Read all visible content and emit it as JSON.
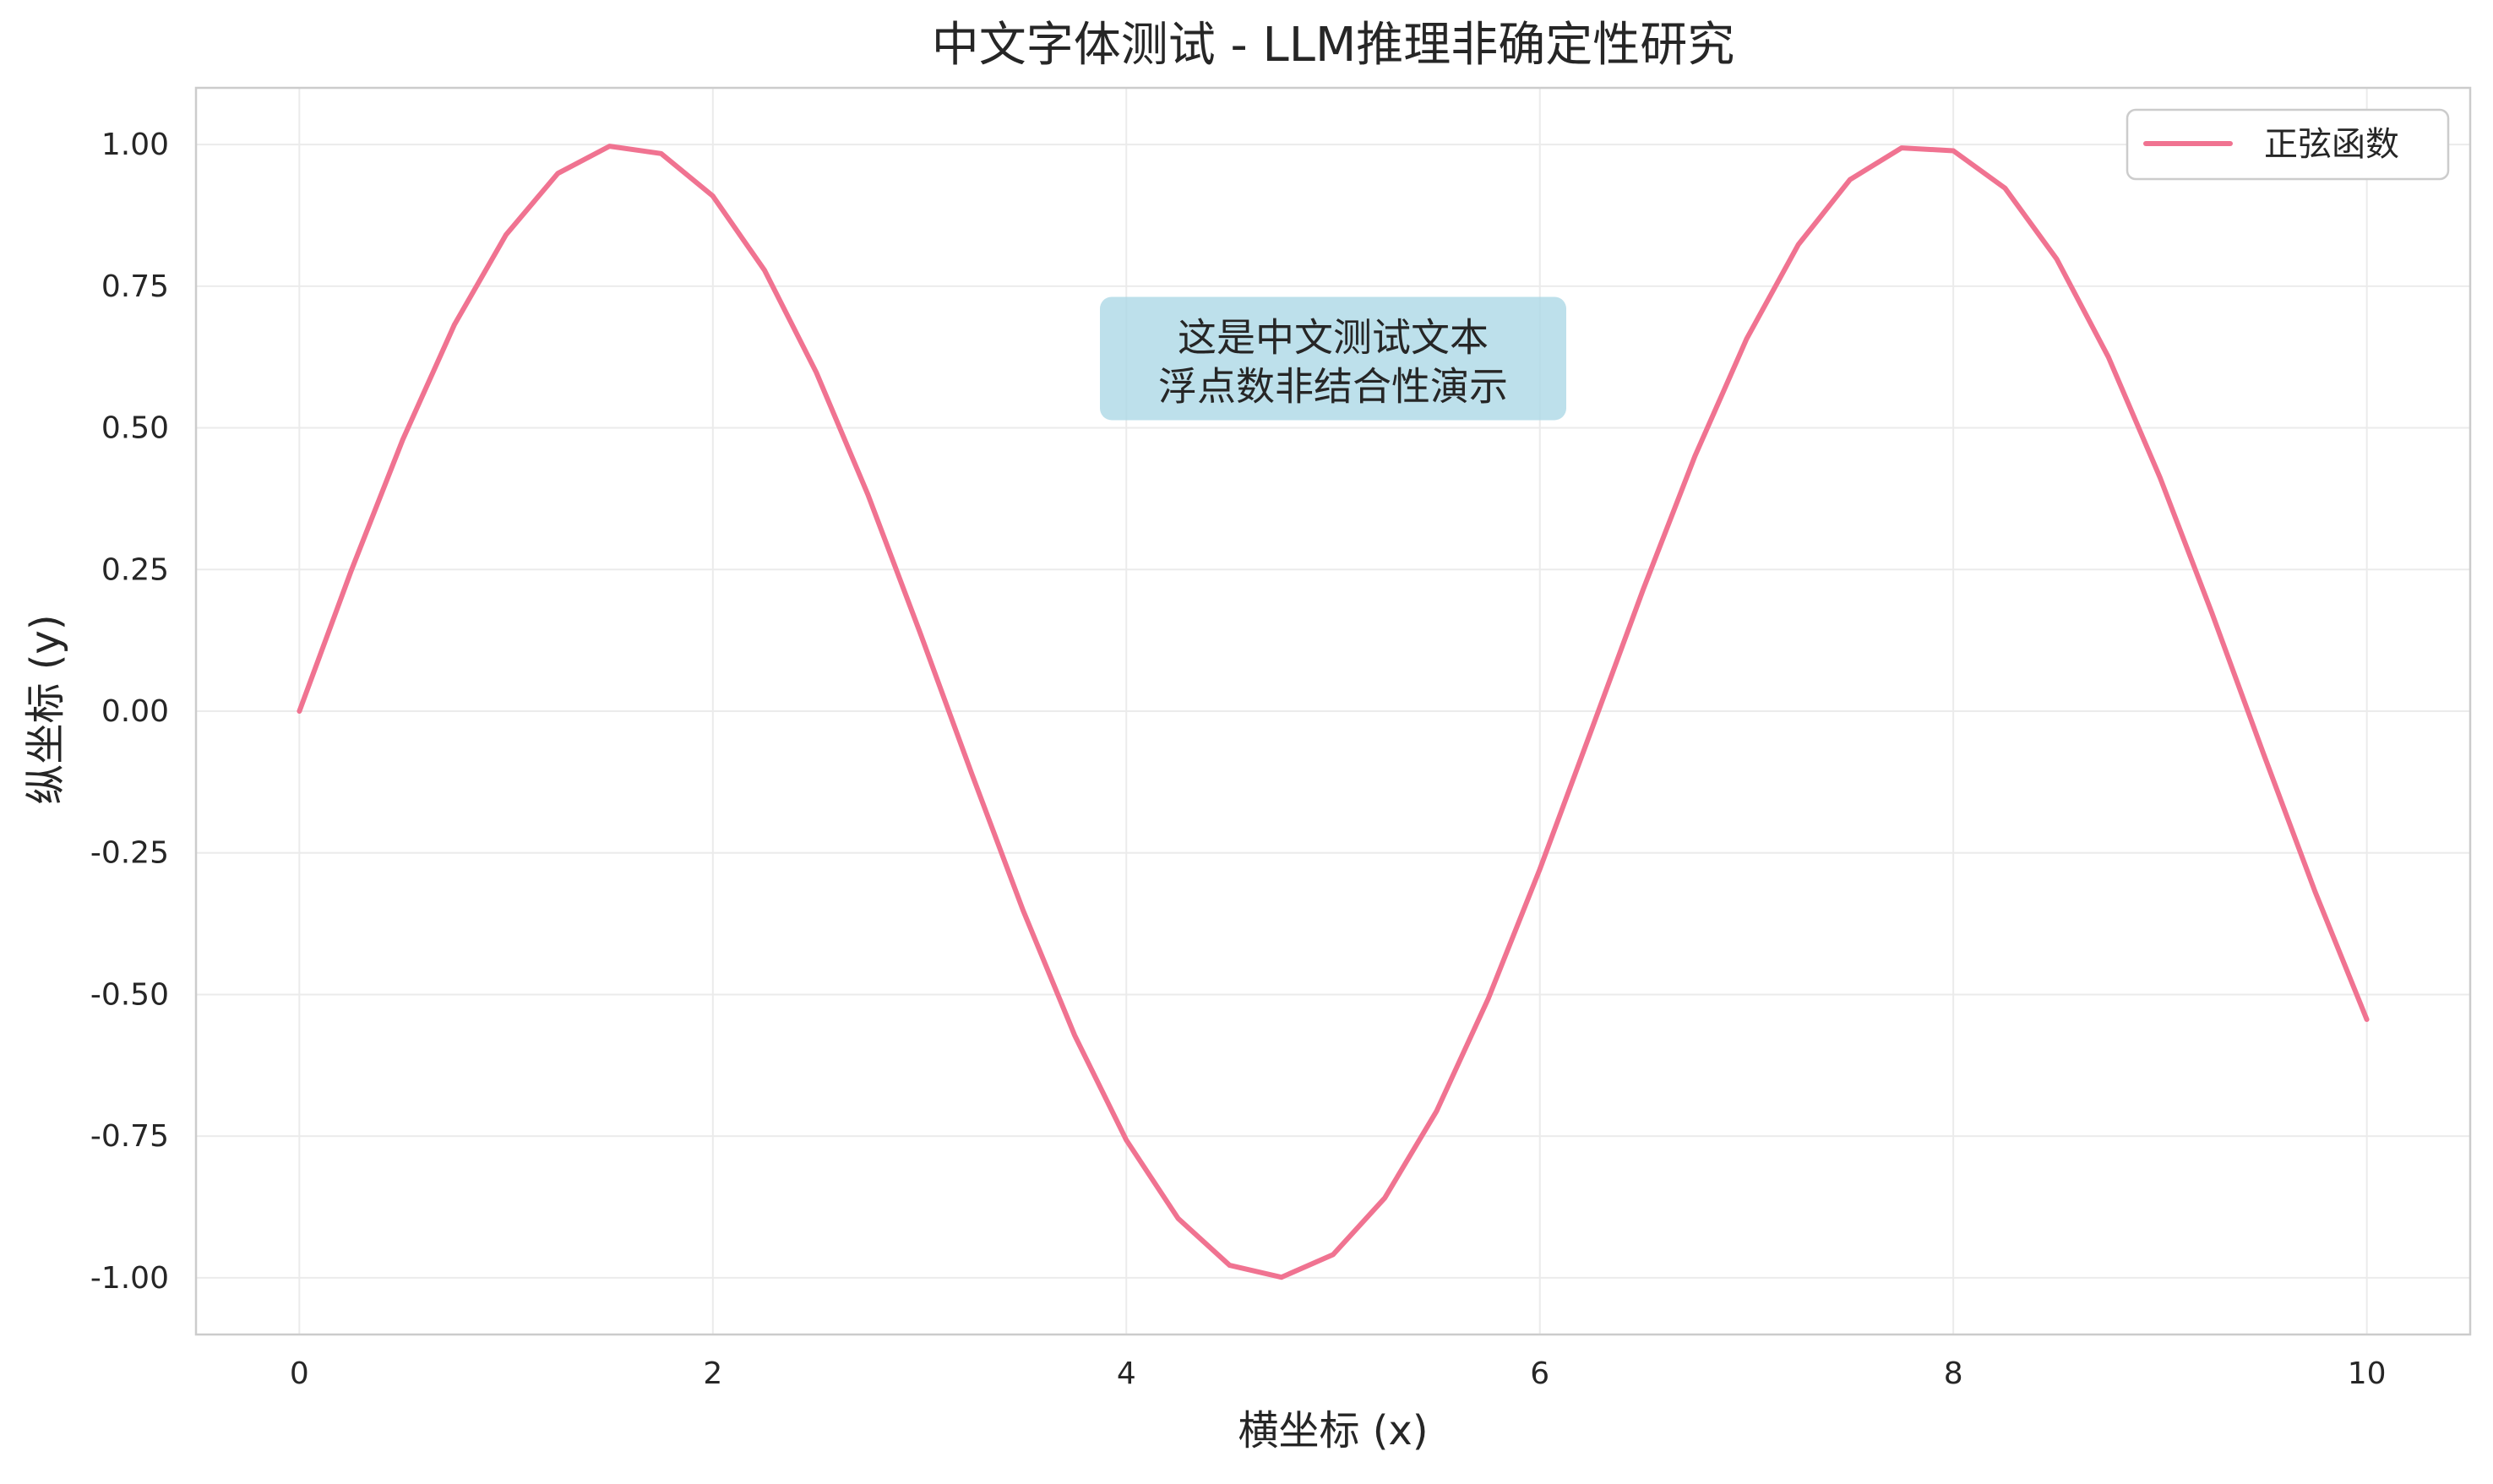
{
  "chart_data": {
    "type": "line",
    "title": "中文字体测试 - LLM推理非确定性研究",
    "xlabel": "横坐标 (x)",
    "ylabel": "纵坐标 (y)",
    "xlim": [
      -0.5,
      10.5
    ],
    "ylim": [
      -1.1,
      1.1
    ],
    "xticks": [
      0,
      2,
      4,
      6,
      8,
      10
    ],
    "xtick_labels": [
      "0",
      "2",
      "4",
      "6",
      "8",
      "10"
    ],
    "yticks": [
      -1.0,
      -0.75,
      -0.5,
      -0.25,
      0.0,
      0.25,
      0.5,
      0.75,
      1.0
    ],
    "ytick_labels": [
      "-1.00",
      "-0.75",
      "-0.50",
      "-0.25",
      "0.00",
      "0.25",
      "0.50",
      "0.75",
      "1.00"
    ],
    "grid": true,
    "legend_position": "top-right",
    "series": [
      {
        "name": "正弦函数",
        "color": "#f07391",
        "x": [
          0.0,
          0.25,
          0.5,
          0.75,
          1.0,
          1.25,
          1.5,
          1.75,
          2.0,
          2.25,
          2.5,
          2.75,
          3.0,
          3.25,
          3.5,
          3.75,
          4.0,
          4.25,
          4.5,
          4.75,
          5.0,
          5.25,
          5.5,
          5.75,
          6.0,
          6.25,
          6.5,
          6.75,
          7.0,
          7.25,
          7.5,
          7.75,
          8.0,
          8.25,
          8.5,
          8.75,
          9.0,
          9.25,
          9.5,
          9.75,
          10.0
        ],
        "y": [
          0.0,
          0.247,
          0.479,
          0.682,
          0.841,
          0.949,
          0.997,
          0.984,
          0.909,
          0.778,
          0.598,
          0.382,
          0.141,
          -0.108,
          -0.351,
          -0.572,
          -0.757,
          -0.895,
          -0.978,
          -0.999,
          -0.959,
          -0.859,
          -0.706,
          -0.508,
          -0.279,
          -0.033,
          0.215,
          0.45,
          0.657,
          0.823,
          0.938,
          0.994,
          0.989,
          0.923,
          0.798,
          0.625,
          0.412,
          0.174,
          -0.075,
          -0.319,
          -0.544
        ]
      }
    ],
    "annotation": {
      "lines": [
        "这是中文测试文本",
        "浮点数非结合性演示"
      ],
      "x": 5.0,
      "y": 0.6,
      "background": "#add8e6"
    }
  }
}
